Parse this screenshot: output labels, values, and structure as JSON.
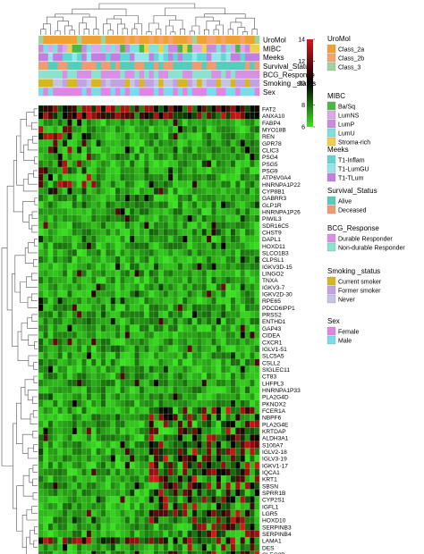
{
  "chart_data": {
    "type": "heatmap",
    "title": "",
    "xlabel": "",
    "ylabel": "",
    "n_samples": 46,
    "rows": [
      "FAT2",
      "ANXA10",
      "FABP4",
      "MYO18B",
      "REN",
      "GPR78",
      "CLIC3",
      "PSG4",
      "PSG5",
      "PSG9",
      "ATP6V0A4",
      "HNRNPA1P22",
      "CYP8B1",
      "GABRR3",
      "GLP1R",
      "HNRNPA1P26",
      "PIWIL3",
      "SDR16C5",
      "CHST9",
      "DAPL1",
      "HOXD11",
      "SLCO1B3",
      "CLPSL1",
      "IGKV3D-15",
      "LINGO2",
      "TNXA",
      "IGKV3-7",
      "IGKV2D-30",
      "RPE65",
      "PDCD6IPP1",
      "PRSS2",
      "ENTHD1",
      "GAP43",
      "CIDEA",
      "CXCR1",
      "IGLV1-51",
      "SLC5A5",
      "CSLL2",
      "SIGLEC11",
      "CT83",
      "LHFPL3",
      "HNRNPA1P33",
      "PLA2G4D",
      "PKNOX2",
      "FCER1A",
      "NBPF6",
      "PLA2G4E",
      "KRTDAP",
      "ALDH3A1",
      "S100A7",
      "IGLV2-18",
      "IGLV3-19",
      "IGKV1-17",
      "IQCA1",
      "KRT1",
      "SBSN",
      "SPRR1B",
      "CYP2S1",
      "IGFL1",
      "LGR5",
      "HOXD10",
      "SERPINB3",
      "SERPINB4",
      "LAMA1",
      "DES",
      "CLEC2B",
      "JCHAIN"
    ],
    "color_scale": {
      "min": 6,
      "max": 14,
      "ticks": [
        "14",
        "12",
        "10",
        "8",
        "6"
      ],
      "low": "#39e61f",
      "mid": "#000000",
      "high": "#e0151a"
    },
    "annotation_tracks": [
      {
        "name": "UroMol",
        "levels": [
          "Class_2a",
          "Class_2b",
          "Class_3"
        ],
        "colors": [
          "#f0a231",
          "#f6a46e",
          "#9fd49a"
        ]
      },
      {
        "name": "MIBC",
        "levels": [
          "Ba/Sq",
          "LumNS",
          "LumP",
          "LumU",
          "Stroma-rich"
        ],
        "colors": [
          "#4cb844",
          "#dda7ec",
          "#c98bdc",
          "#7fe0e0",
          "#f1cf46"
        ]
      },
      {
        "name": "Meeks",
        "levels": [
          "T1-Inflam",
          "T1-LumGU",
          "T1-TLum"
        ],
        "colors": [
          "#5ed9d1",
          "#95e6ea",
          "#c27fde"
        ]
      },
      {
        "name": "Survival_Status",
        "levels": [
          "Alive",
          "Deceased"
        ],
        "colors": [
          "#54cdbd",
          "#f29a70"
        ]
      },
      {
        "name": "BCG_Response",
        "levels": [
          "Durable Responder",
          "Non-durable Responder"
        ],
        "colors": [
          "#d98fe6",
          "#8be2cf"
        ]
      },
      {
        "name": "Smoking _status",
        "levels": [
          "Current smoker",
          "Former smoker",
          "Never"
        ],
        "colors": [
          "#d7b81b",
          "#c2a2e4",
          "#c4c4e4"
        ]
      },
      {
        "name": "Sex",
        "levels": [
          "Female",
          "Male"
        ],
        "colors": [
          "#e184e6",
          "#76dcee"
        ]
      }
    ]
  }
}
